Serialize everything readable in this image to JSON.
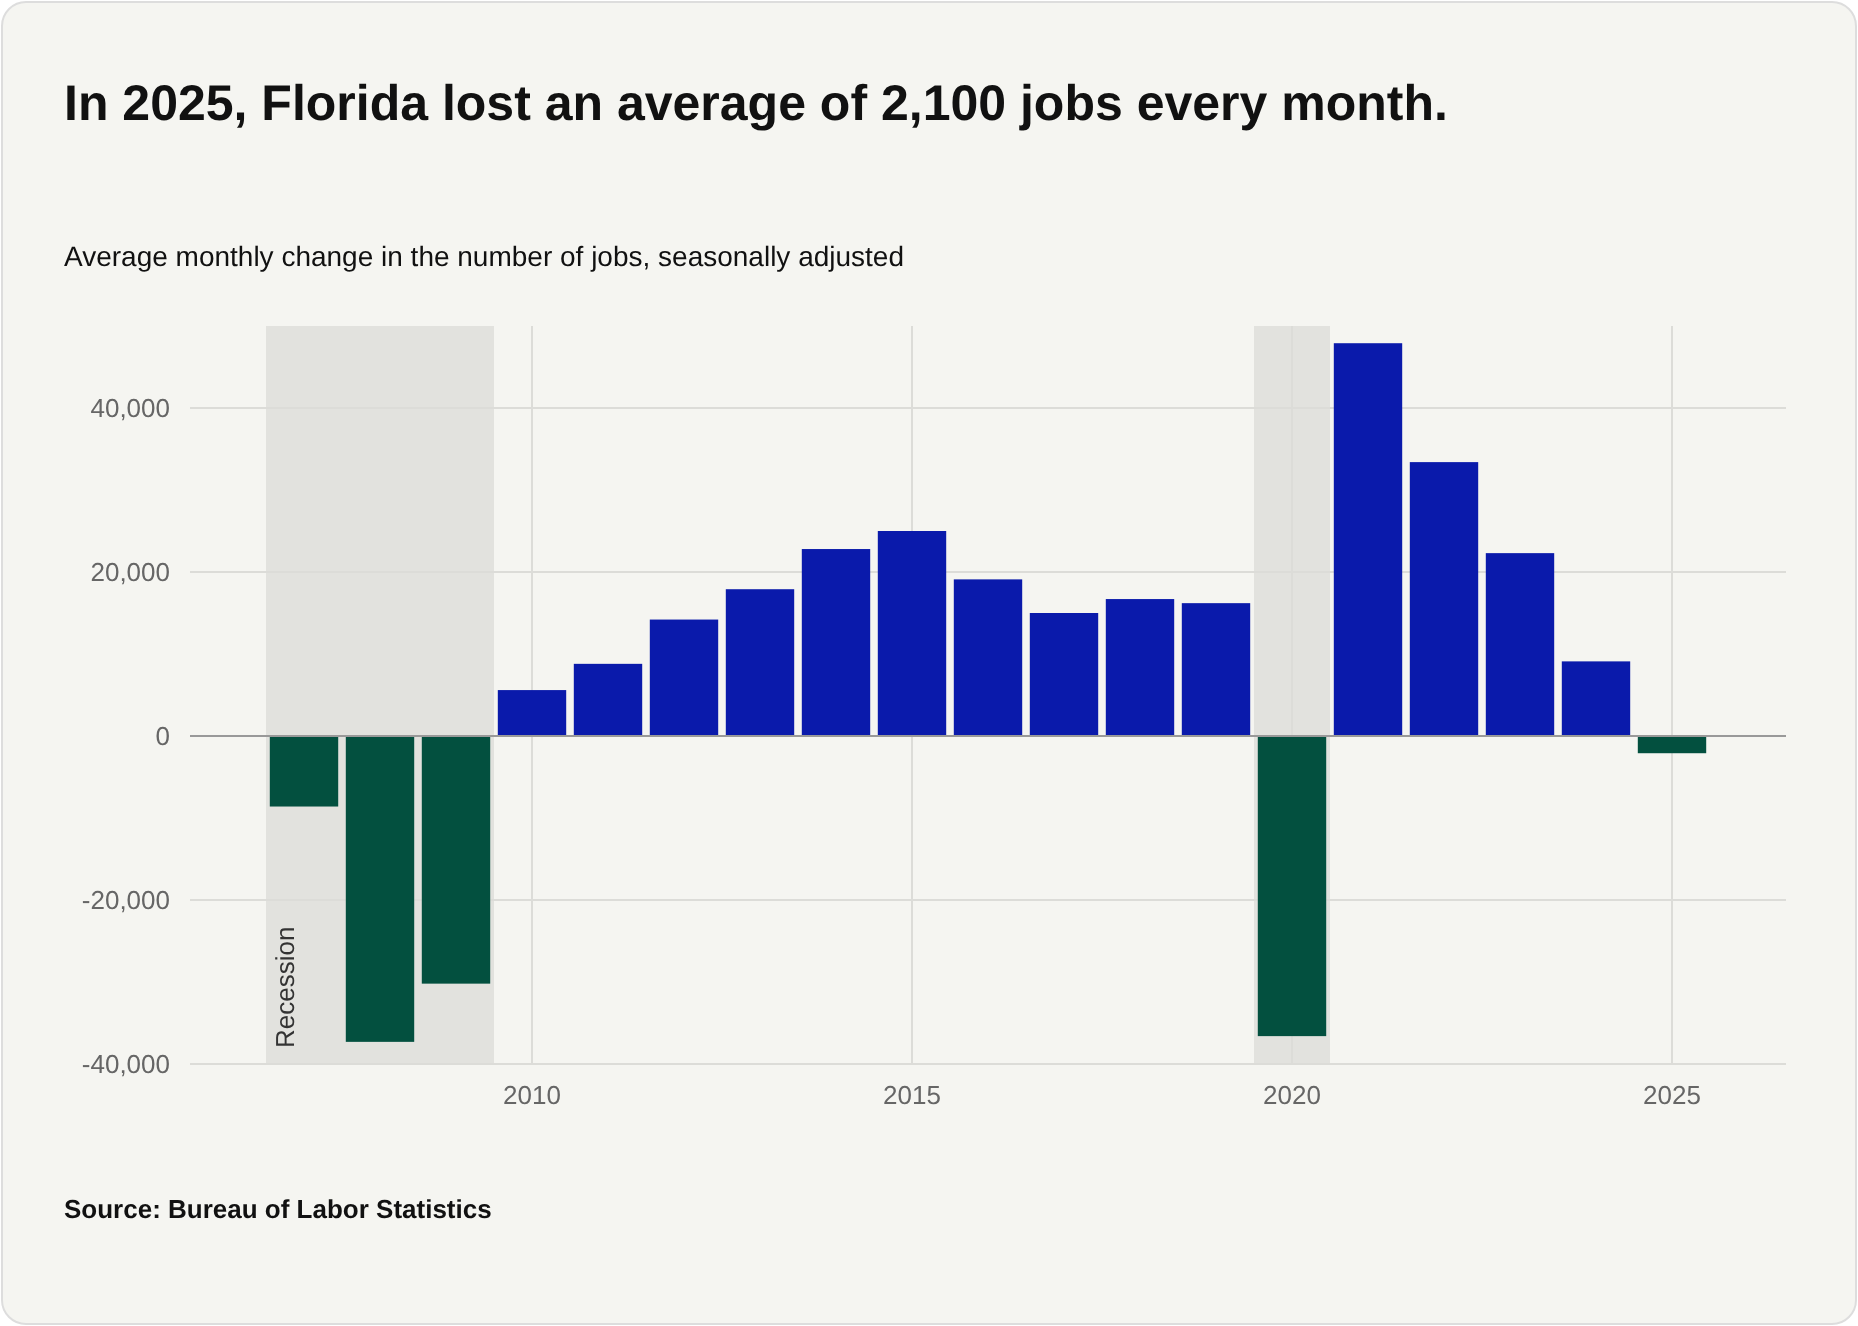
{
  "chart_data": {
    "type": "bar",
    "title": "In 2025, Florida lost an average of 2,100 jobs every month.",
    "subtitle": "Average monthly change in the number of jobs, seasonally adjusted",
    "x": [
      2007,
      2008,
      2009,
      2010,
      2011,
      2012,
      2013,
      2014,
      2015,
      2016,
      2017,
      2018,
      2019,
      2020,
      2021,
      2022,
      2023,
      2024,
      2025
    ],
    "values": [
      -8600,
      -37300,
      -30200,
      5600,
      8800,
      14200,
      17900,
      22800,
      25000,
      19100,
      15000,
      16700,
      16200,
      -36600,
      47900,
      33400,
      22300,
      9100,
      -2100
    ],
    "colors": [
      "#03503f",
      "#03503f",
      "#03503f",
      "#0a1aab",
      "#0a1aab",
      "#0a1aab",
      "#0a1aab",
      "#0a1aab",
      "#0a1aab",
      "#0a1aab",
      "#0a1aab",
      "#0a1aab",
      "#0a1aab",
      "#03503f",
      "#0a1aab",
      "#0a1aab",
      "#0a1aab",
      "#0a1aab",
      "#03503f"
    ],
    "xlim": [
      2005.5,
      2026.5
    ],
    "xticks": [
      2010,
      2015,
      2020,
      2025
    ],
    "ylim": [
      -40000,
      50000
    ],
    "yticks": [
      {
        "value": -40000,
        "label": "-40,000"
      },
      {
        "value": -20000,
        "label": "-20,000"
      },
      {
        "value": 0,
        "label": "0"
      },
      {
        "value": 20000,
        "label": "20,000"
      },
      {
        "value": 40000,
        "label": "40,000"
      }
    ],
    "grid": true,
    "bands": [
      {
        "axis": "x",
        "from": 2006.5,
        "to": 2009.5,
        "label": "Recession",
        "color": "#e2e2de"
      },
      {
        "axis": "x",
        "from": 2019.5,
        "to": 2020.5,
        "color": "#e2e2de"
      }
    ],
    "annotations": [
      "Source: Bureau of Labor Statistics"
    ]
  }
}
